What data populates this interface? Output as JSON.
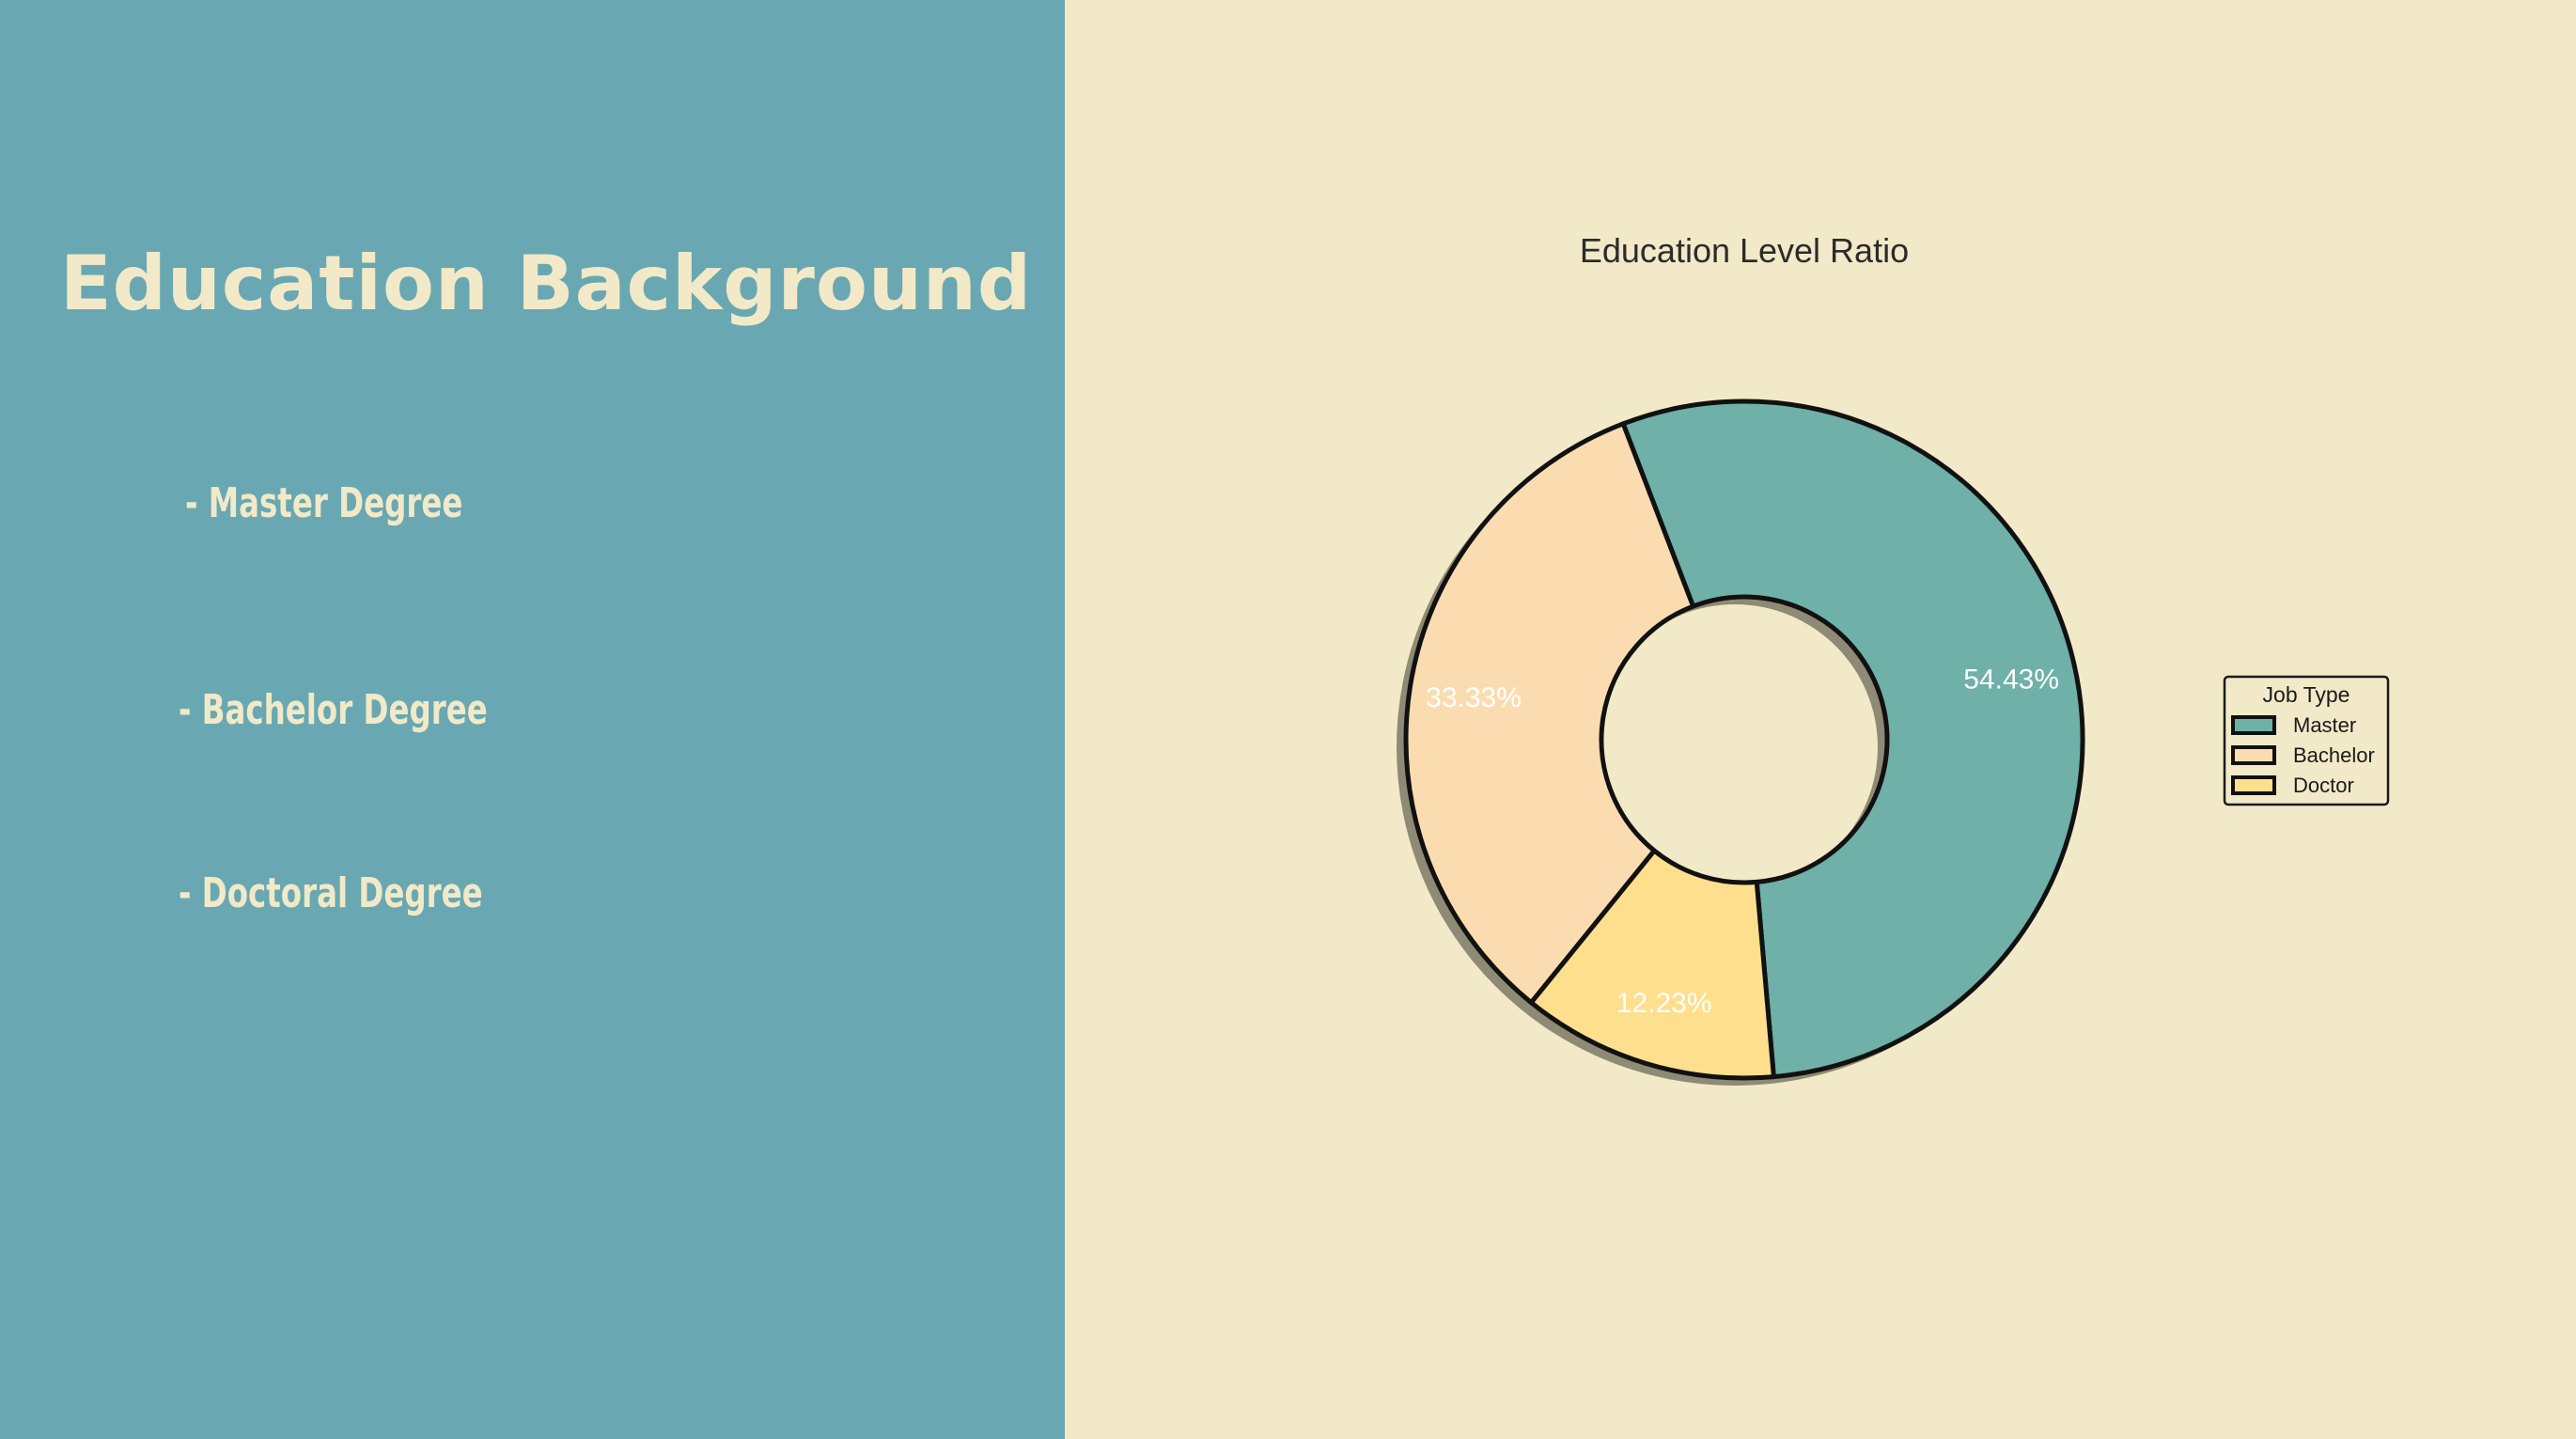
{
  "slide": {
    "title": "Education Background",
    "degrees": [
      "- Master Degree",
      "- Bachelor Degree",
      "- Doctoral Degree"
    ]
  },
  "colors": {
    "left_panel": "#69A8B2",
    "background": "#F2E9C8",
    "master": "#6FB0A8",
    "bachelor": "#FBDCB1",
    "doctor": "#FDDF8D"
  },
  "chart_data": {
    "type": "pie",
    "style": "donut",
    "title": "Education Level Ratio",
    "categories": [
      "Master",
      "Bachelor",
      "Doctor"
    ],
    "values": [
      54.43,
      33.33,
      12.23
    ],
    "labels": [
      "54.43%",
      "33.33%",
      "12.23%"
    ],
    "legend": {
      "title": "Job Type",
      "entries": [
        "Master",
        "Bachelor",
        "Doctor"
      ],
      "placement": "right"
    },
    "shadow": true
  }
}
